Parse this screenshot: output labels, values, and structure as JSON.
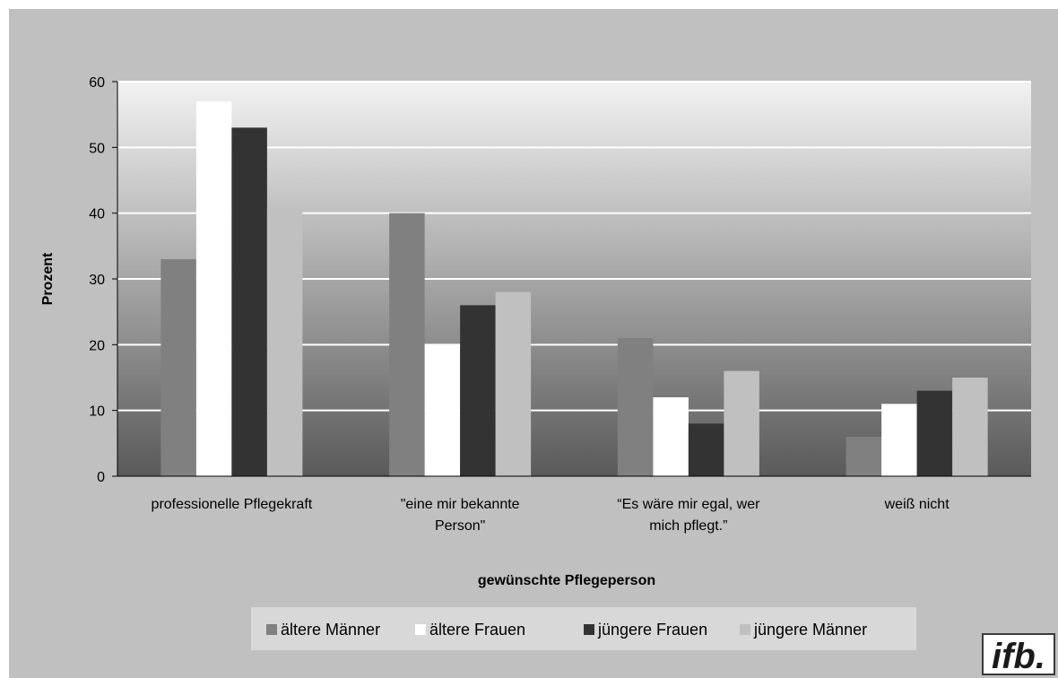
{
  "chart_data": {
    "type": "bar",
    "categories": [
      [
        "professionelle Pflegekraft"
      ],
      [
        "\"eine mir bekannte",
        "Person\""
      ],
      [
        "“Es wäre mir egal, wer",
        "mich pflegt.”"
      ],
      [
        "weiß nicht"
      ]
    ],
    "series": [
      {
        "name": "ältere Männer",
        "color": "#808080",
        "values": [
          33,
          40,
          21,
          6
        ]
      },
      {
        "name": "ältere Frauen",
        "color": "#ffffff",
        "values": [
          57,
          20,
          12,
          11
        ]
      },
      {
        "name": "jüngere Frauen",
        "color": "#333333",
        "values": [
          53,
          26,
          8,
          13
        ]
      },
      {
        "name": "jüngere Männer",
        "color": "#c0c0c0",
        "values": [
          41,
          28,
          16,
          15
        ]
      }
    ],
    "xlabel": "gewünschte Pflegeperson",
    "ylabel": "Prozent",
    "ylim": [
      0,
      60
    ],
    "yticks": [
      "0",
      "10",
      "20",
      "30",
      "40",
      "50",
      "60"
    ],
    "grid": true,
    "legend_position": "bottom"
  },
  "logo": "ifb."
}
